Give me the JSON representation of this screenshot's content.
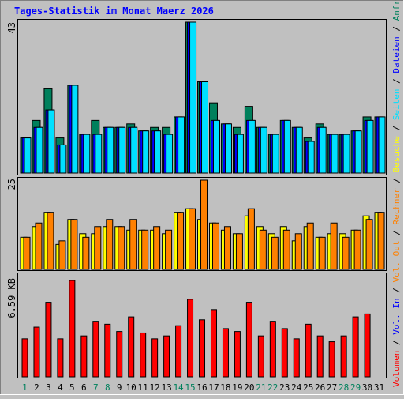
{
  "title": "Tages-Statistik im Monat Maerz 2026",
  "colors": {
    "background": "#c0c0c0",
    "panel": "#c0c0c0",
    "title": "#0000ff",
    "anfragen": "#00805c",
    "dateien": "#0000ff",
    "seiten": "#00e0ff",
    "besuche": "#ffff00",
    "rechner": "#ff8000",
    "vol_out": "#ff8000",
    "vol_in": "#0000ff",
    "volumen": "#ff0000",
    "weekend_day": "#00805c",
    "weekday": "#000000",
    "bar_outline": "#000000"
  },
  "right_legend": {
    "top": [
      {
        "text": "Anfragen",
        "color": "#00805c"
      },
      {
        "text": " / ",
        "color": "#000000"
      },
      {
        "text": "Dateien",
        "color": "#0000ff"
      },
      {
        "text": " / ",
        "color": "#000000"
      },
      {
        "text": "Seiten",
        "color": "#00e0ff"
      },
      {
        "text": " / ",
        "color": "#000000"
      },
      {
        "text": "Besuche",
        "color": "#ffff00"
      },
      {
        "text": " / ",
        "color": "#000000"
      },
      {
        "text": "Rechner",
        "color": "#ff8000"
      },
      {
        "text": " / ",
        "color": "#000000"
      },
      {
        "text": "Vol. Out",
        "color": "#ff8000"
      },
      {
        "text": " / ",
        "color": "#000000"
      },
      {
        "text": "Vol. In",
        "color": "#0000ff"
      },
      {
        "text": " / ",
        "color": "#000000"
      },
      {
        "text": "Volumen",
        "color": "#ff0000"
      }
    ]
  },
  "chart_data": [
    {
      "type": "bar",
      "panel": "top",
      "ymax_label": "43",
      "ylim": [
        0,
        43
      ],
      "categories": [
        "1",
        "2",
        "3",
        "4",
        "5",
        "6",
        "7",
        "8",
        "9",
        "10",
        "11",
        "12",
        "13",
        "14",
        "15",
        "16",
        "17",
        "18",
        "19",
        "20",
        "21",
        "22",
        "23",
        "24",
        "25",
        "26",
        "27",
        "28",
        "29",
        "30",
        "31"
      ],
      "series": [
        {
          "name": "Anfragen",
          "values": [
            10,
            15,
            24,
            10,
            25,
            11,
            15,
            13,
            13,
            14,
            12,
            13,
            13,
            16,
            43,
            26,
            20,
            14,
            13,
            19,
            13,
            11,
            15,
            13,
            10,
            14,
            11,
            11,
            12,
            16,
            16
          ]
        },
        {
          "name": "Dateien",
          "values": [
            10,
            13,
            18,
            8,
            25,
            11,
            11,
            13,
            13,
            13,
            12,
            12,
            11,
            16,
            43,
            26,
            15,
            14,
            11,
            15,
            13,
            11,
            15,
            13,
            9,
            13,
            11,
            11,
            12,
            15,
            16
          ]
        },
        {
          "name": "Seiten",
          "values": [
            10,
            13,
            18,
            8,
            25,
            11,
            11,
            13,
            13,
            13,
            12,
            12,
            11,
            16,
            43,
            26,
            15,
            14,
            11,
            15,
            13,
            11,
            15,
            13,
            9,
            13,
            11,
            11,
            12,
            15,
            16
          ]
        }
      ]
    },
    {
      "type": "bar",
      "panel": "middle",
      "ymax_label": "25",
      "ylim": [
        0,
        25
      ],
      "categories": [
        "1",
        "2",
        "3",
        "4",
        "5",
        "6",
        "7",
        "8",
        "9",
        "10",
        "11",
        "12",
        "13",
        "14",
        "15",
        "16",
        "17",
        "18",
        "19",
        "20",
        "21",
        "22",
        "23",
        "24",
        "25",
        "26",
        "27",
        "28",
        "29",
        "30",
        "31"
      ],
      "series": [
        {
          "name": "Besuche",
          "values": [
            9,
            12,
            16,
            7,
            14,
            10,
            10,
            12,
            12,
            11,
            11,
            11,
            10,
            16,
            17,
            14,
            13,
            11,
            10,
            15,
            12,
            10,
            12,
            8,
            12,
            9,
            10,
            10,
            11,
            15,
            16
          ]
        },
        {
          "name": "Rechner",
          "values": [
            9,
            13,
            16,
            8,
            14,
            9,
            12,
            14,
            12,
            14,
            11,
            12,
            11,
            16,
            17,
            25,
            13,
            12,
            10,
            17,
            11,
            9,
            11,
            10,
            13,
            9,
            13,
            9,
            11,
            14,
            16
          ]
        }
      ]
    },
    {
      "type": "bar",
      "panel": "bottom",
      "ymax_label": "6.59 KB",
      "ylim": [
        0,
        6.59
      ],
      "categories": [
        "1",
        "2",
        "3",
        "4",
        "5",
        "6",
        "7",
        "8",
        "9",
        "10",
        "11",
        "12",
        "13",
        "14",
        "15",
        "16",
        "17",
        "18",
        "19",
        "20",
        "21",
        "22",
        "23",
        "24",
        "25",
        "26",
        "27",
        "28",
        "29",
        "30",
        "31"
      ],
      "series": [
        {
          "name": "Volumen",
          "values": [
            2.6,
            3.4,
            5.1,
            2.6,
            6.59,
            2.8,
            3.8,
            3.6,
            3.1,
            4.1,
            3.0,
            2.6,
            2.8,
            3.5,
            5.3,
            3.9,
            4.6,
            3.3,
            3.1,
            5.1,
            2.8,
            3.8,
            3.3,
            2.6,
            3.6,
            2.8,
            2.4,
            2.8,
            4.1,
            4.3,
            0
          ]
        }
      ]
    }
  ],
  "x_axis_days": [
    "1",
    "2",
    "3",
    "4",
    "5",
    "6",
    "7",
    "8",
    "9",
    "10",
    "11",
    "12",
    "13",
    "14",
    "15",
    "16",
    "17",
    "18",
    "19",
    "20",
    "21",
    "22",
    "23",
    "24",
    "25",
    "26",
    "27",
    "28",
    "29",
    "30",
    "31"
  ],
  "weekend_days": [
    "1",
    "7",
    "8",
    "14",
    "15",
    "21",
    "22",
    "28",
    "29"
  ]
}
